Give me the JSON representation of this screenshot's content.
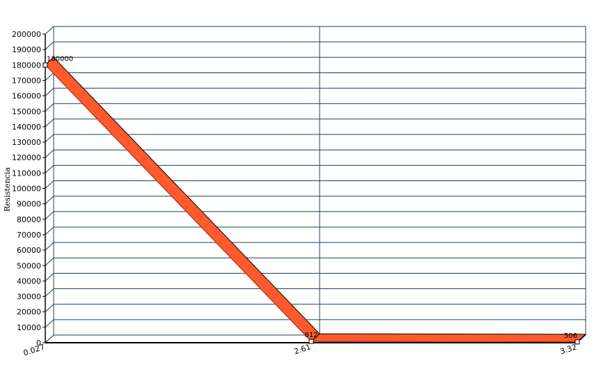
{
  "chart_data": {
    "type": "line",
    "title": "",
    "xlabel": "",
    "ylabel": "Resistencia",
    "categories": [
      "0.027",
      "2.61",
      "3.32"
    ],
    "series": [
      {
        "values": [
          180000,
          812,
          506
        ],
        "labels": [
          "180000",
          "812",
          "506"
        ],
        "color": "#ff5a2d"
      }
    ],
    "ylim": [
      0,
      200000
    ],
    "ytick_step": 10000,
    "grid": true,
    "legend": "none",
    "style": "3d-ribbon"
  }
}
